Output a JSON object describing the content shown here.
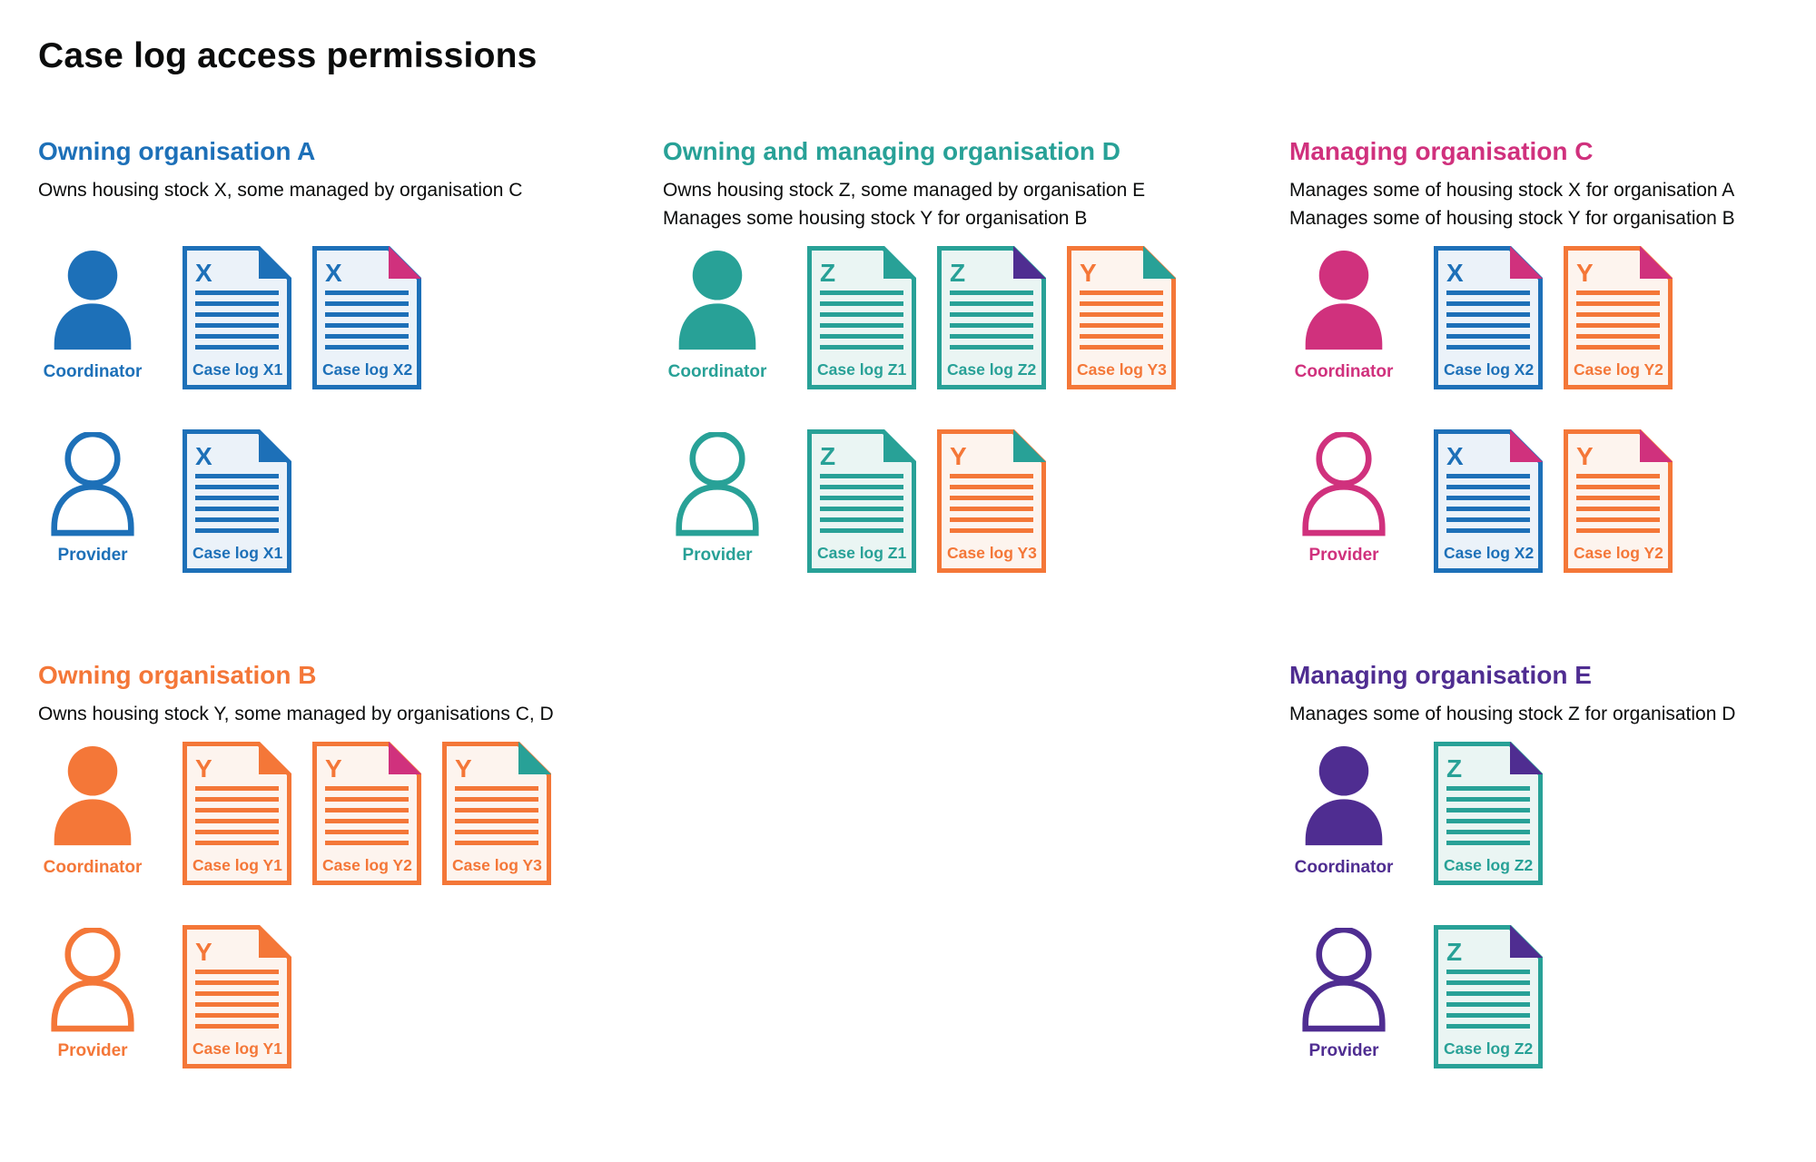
{
  "page_title": "Case log access permissions",
  "colors": {
    "blue": "#1d70b8",
    "teal": "#28a197",
    "orange": "#f47738",
    "pink": "#d0317d",
    "purple": "#4f2d91",
    "text": "#0b0c0c"
  },
  "colors_light": {
    "blue": "#ebf2f9",
    "teal": "#eaf5f3",
    "orange": "#fdf4ee"
  },
  "sections": [
    {
      "id": "org-a",
      "heading": "Owning organisation A",
      "color_key": "blue",
      "description_lines": [
        "Owns housing stock X, some managed by organisation C"
      ],
      "rows": [
        {
          "role_label": "Coordinator",
          "person_style": "filled",
          "documents": [
            {
              "letter": "X",
              "label": "Case log X1",
              "doc_color": "blue",
              "fold_color": "blue"
            },
            {
              "letter": "X",
              "label": "Case log X2",
              "doc_color": "blue",
              "fold_color": "pink"
            }
          ]
        },
        {
          "role_label": "Provider",
          "person_style": "outline",
          "documents": [
            {
              "letter": "X",
              "label": "Case log X1",
              "doc_color": "blue",
              "fold_color": "blue"
            }
          ]
        }
      ]
    },
    {
      "id": "org-d",
      "heading": "Owning and managing organisation D",
      "color_key": "teal",
      "description_lines": [
        "Owns housing stock Z, some managed by organisation E",
        "Manages some housing stock Y for organisation B"
      ],
      "rows": [
        {
          "role_label": "Coordinator",
          "person_style": "filled",
          "documents": [
            {
              "letter": "Z",
              "label": "Case log Z1",
              "doc_color": "teal",
              "fold_color": "teal"
            },
            {
              "letter": "Z",
              "label": "Case log Z2",
              "doc_color": "teal",
              "fold_color": "purple"
            },
            {
              "letter": "Y",
              "label": "Case log Y3",
              "doc_color": "orange",
              "fold_color": "teal"
            }
          ]
        },
        {
          "role_label": "Provider",
          "person_style": "outline",
          "documents": [
            {
              "letter": "Z",
              "label": "Case log Z1",
              "doc_color": "teal",
              "fold_color": "teal"
            },
            {
              "letter": "Y",
              "label": "Case log Y3",
              "doc_color": "orange",
              "fold_color": "teal"
            }
          ]
        }
      ]
    },
    {
      "id": "org-c",
      "heading": "Managing organisation C",
      "color_key": "pink",
      "description_lines": [
        "Manages some of housing stock X for organisation A",
        "Manages some of housing stock Y for organisation B"
      ],
      "rows": [
        {
          "role_label": "Coordinator",
          "person_style": "filled",
          "documents": [
            {
              "letter": "X",
              "label": "Case log X2",
              "doc_color": "blue",
              "fold_color": "pink"
            },
            {
              "letter": "Y",
              "label": "Case log Y2",
              "doc_color": "orange",
              "fold_color": "pink"
            }
          ]
        },
        {
          "role_label": "Provider",
          "person_style": "outline",
          "documents": [
            {
              "letter": "X",
              "label": "Case log X2",
              "doc_color": "blue",
              "fold_color": "pink"
            },
            {
              "letter": "Y",
              "label": "Case log Y2",
              "doc_color": "orange",
              "fold_color": "pink"
            }
          ]
        }
      ]
    },
    {
      "id": "org-b",
      "heading": "Owning organisation B",
      "color_key": "orange",
      "description_lines": [
        "Owns housing stock Y, some managed by organisations C, D"
      ],
      "rows": [
        {
          "role_label": "Coordinator",
          "person_style": "filled",
          "documents": [
            {
              "letter": "Y",
              "label": "Case log Y1",
              "doc_color": "orange",
              "fold_color": "orange"
            },
            {
              "letter": "Y",
              "label": "Case log Y2",
              "doc_color": "orange",
              "fold_color": "pink"
            },
            {
              "letter": "Y",
              "label": "Case log Y3",
              "doc_color": "orange",
              "fold_color": "teal"
            }
          ]
        },
        {
          "role_label": "Provider",
          "person_style": "outline",
          "documents": [
            {
              "letter": "Y",
              "label": "Case log Y1",
              "doc_color": "orange",
              "fold_color": "orange"
            }
          ]
        }
      ]
    },
    {
      "id": "org-e",
      "heading": "Managing organisation E",
      "color_key": "purple",
      "description_lines": [
        "Manages some of housing stock Z for organisation D"
      ],
      "rows": [
        {
          "role_label": "Coordinator",
          "person_style": "filled",
          "documents": [
            {
              "letter": "Z",
              "label": "Case log Z2",
              "doc_color": "teal",
              "fold_color": "purple"
            }
          ]
        },
        {
          "role_label": "Provider",
          "person_style": "outline",
          "documents": [
            {
              "letter": "Z",
              "label": "Case log Z2",
              "doc_color": "teal",
              "fold_color": "purple"
            }
          ]
        }
      ]
    }
  ]
}
